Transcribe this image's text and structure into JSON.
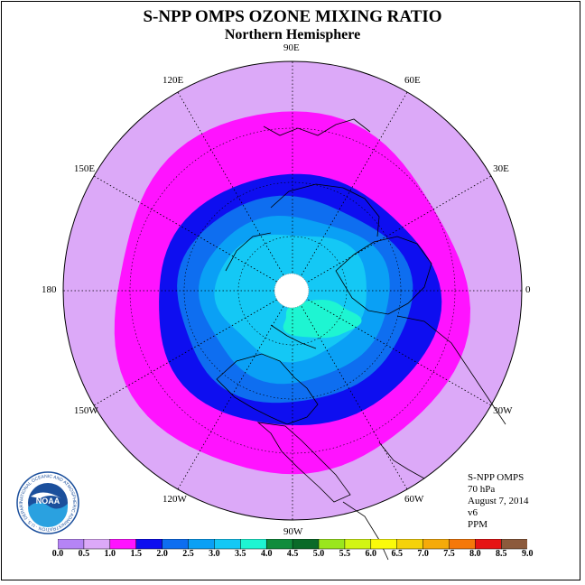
{
  "title": "S-NPP OMPS OZONE MIXING RATIO",
  "subtitle": "Northern Hemisphere",
  "longitude_labels": [
    "90E",
    "60E",
    "30E",
    "0",
    "30W",
    "60W",
    "90W",
    "120W",
    "150W",
    "180",
    "150E",
    "120E"
  ],
  "info": {
    "instrument": "S-NPP OMPS",
    "pressure": "70 hPa",
    "date": "August 7, 2014",
    "version": "v6",
    "units": "PPM"
  },
  "logo": {
    "text": "NOAA",
    "ring_text": "NATIONAL OCEANIC AND ATMOSPHERIC ADMINISTRATION · U.S. DEPARTMENT OF COMMERCE"
  },
  "colorbar": {
    "ticks": [
      "0.0",
      "0.5",
      "1.0",
      "1.5",
      "2.0",
      "2.5",
      "3.0",
      "3.5",
      "4.0",
      "4.5",
      "5.0",
      "5.5",
      "6.0",
      "6.5",
      "7.0",
      "7.5",
      "8.0",
      "8.5",
      "9.0"
    ],
    "colors": [
      "#b584f5",
      "#dca9f8",
      "#ff13ff",
      "#0e0ef0",
      "#0e6ef0",
      "#0aa0f5",
      "#14c8f5",
      "#1ef5d2",
      "#118c3c",
      "#0a6a28",
      "#9ae61e",
      "#d2f514",
      "#fafa0a",
      "#f5d20a",
      "#f5aa0a",
      "#f5780a",
      "#e61414",
      "#8c5a3c"
    ]
  },
  "map_colors": {
    "outer": "#dca9f8",
    "band_1_0": "#ff13ff",
    "band_1_5": "#0e0ef0",
    "band_2_0": "#0e6ef0",
    "band_2_5": "#0aa0f5",
    "band_3_0": "#14c8f5",
    "band_3_5": "#1ef5d2",
    "pole": "#ffffff"
  }
}
